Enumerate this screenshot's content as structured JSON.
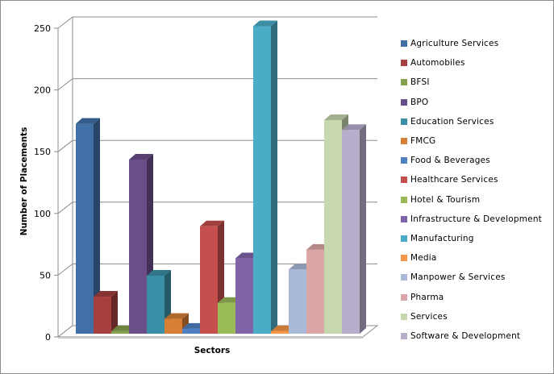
{
  "chart_data": {
    "type": "bar",
    "style": "3d-clustered-column",
    "title": "",
    "xlabel": "Sectors",
    "ylabel": "Number of Placements",
    "ylim": [
      0,
      250
    ],
    "yticks": [
      0,
      50,
      100,
      150,
      200,
      250
    ],
    "grid": true,
    "legend_position": "right",
    "categories": [
      "Sectors"
    ],
    "series": [
      {
        "name": "Agriculture Services",
        "values": [
          170
        ],
        "color": "#4170A6"
      },
      {
        "name": "Automobiles",
        "values": [
          30
        ],
        "color": "#A5403E"
      },
      {
        "name": "BFSI",
        "values": [
          2
        ],
        "color": "#84A14C"
      },
      {
        "name": "BPO",
        "values": [
          141
        ],
        "color": "#6A4E8A"
      },
      {
        "name": "Education Services",
        "values": [
          47
        ],
        "color": "#3A8FA6"
      },
      {
        "name": "FMCG",
        "values": [
          12
        ],
        "color": "#D87F36"
      },
      {
        "name": "Food & Beverages",
        "values": [
          4
        ],
        "color": "#4F81C2"
      },
      {
        "name": "Healthcare Services",
        "values": [
          87
        ],
        "color": "#C44F4D"
      },
      {
        "name": "Hotel & Tourism",
        "values": [
          25
        ],
        "color": "#9BBB59"
      },
      {
        "name": "Infrastructure & Development",
        "values": [
          61
        ],
        "color": "#8064A8"
      },
      {
        "name": "Manufacturing",
        "values": [
          249
        ],
        "color": "#4BACC6"
      },
      {
        "name": "Media",
        "values": [
          2
        ],
        "color": "#F79646"
      },
      {
        "name": "Manpower & Services",
        "values": [
          52
        ],
        "color": "#A9BAD9"
      },
      {
        "name": "Pharma",
        "values": [
          68
        ],
        "color": "#DBA7A6"
      },
      {
        "name": "Services",
        "values": [
          173
        ],
        "color": "#C7D7AE"
      },
      {
        "name": "Software & Development",
        "values": [
          165
        ],
        "color": "#B8AECC"
      }
    ]
  },
  "axes": {
    "y_title": "Number of Placements",
    "x_title": "Sectors",
    "y_tick_labels": [
      "0",
      "50",
      "100",
      "150",
      "200",
      "250"
    ]
  },
  "legend": {
    "items": [
      {
        "label": "Agriculture Services",
        "color": "#4170A6"
      },
      {
        "label": "Automobiles",
        "color": "#A5403E"
      },
      {
        "label": "BFSI",
        "color": "#84A14C"
      },
      {
        "label": "BPO",
        "color": "#6A4E8A"
      },
      {
        "label": "Education Services",
        "color": "#3A8FA6"
      },
      {
        "label": "FMCG",
        "color": "#D87F36"
      },
      {
        "label": "Food & Beverages",
        "color": "#4F81C2"
      },
      {
        "label": "Healthcare Services",
        "color": "#C44F4D"
      },
      {
        "label": "Hotel & Tourism",
        "color": "#9BBB59"
      },
      {
        "label": "Infrastructure & Development",
        "color": "#8064A8"
      },
      {
        "label": "Manufacturing",
        "color": "#4BACC6"
      },
      {
        "label": "Media",
        "color": "#F79646"
      },
      {
        "label": "Manpower & Services",
        "color": "#A9BAD9"
      },
      {
        "label": "Pharma",
        "color": "#DBA7A6"
      },
      {
        "label": "Services",
        "color": "#C7D7AE"
      },
      {
        "label": "Software & Development",
        "color": "#B8AECC"
      }
    ]
  }
}
